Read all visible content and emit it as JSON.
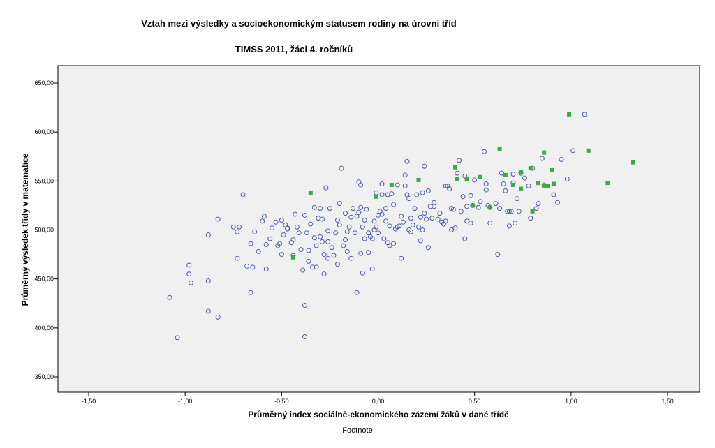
{
  "chart_data": {
    "type": "scatter",
    "title": "Vztah mezi výsledky a socioekonomickým statusem rodiny na úrovni tříd",
    "subtitle": "TIMSS 2011, žáci 4. ročníků",
    "xlabel": "Průměrný index sociálně-ekonomického zázemí žáků v dané třídě",
    "ylabel": "Průměrný výsledek třídy v matematice",
    "footnote": "Footnote",
    "xlim": [
      -1.5,
      1.5
    ],
    "ylim": [
      350,
      650
    ],
    "x_ticks": [
      -1.5,
      -1.0,
      -0.5,
      0.0,
      0.5,
      1.0,
      1.5
    ],
    "x_tick_labels": [
      "-1,50",
      "-1,00",
      "-0,50",
      "0,00",
      "0,50",
      "1,00",
      "1,50"
    ],
    "y_ticks": [
      350,
      400,
      450,
      500,
      550,
      600,
      650
    ],
    "y_tick_labels": [
      "350,00",
      "400,00",
      "450,00",
      "500,00",
      "550,00",
      "600,00",
      "650,00"
    ],
    "colors": {
      "plot_bg": "#f0f0f0",
      "circle": "#4a5aa8",
      "square": "#3aaa45"
    },
    "series": [
      {
        "name": "circles",
        "marker": "circle",
        "points": [
          [
            -1.08,
            431
          ],
          [
            -1.04,
            390
          ],
          [
            -0.97,
            446
          ],
          [
            -0.98,
            464
          ],
          [
            -0.98,
            455
          ],
          [
            -0.88,
            495
          ],
          [
            -0.88,
            448
          ],
          [
            -0.88,
            417
          ],
          [
            -0.83,
            411
          ],
          [
            -0.83,
            511
          ],
          [
            -0.75,
            503
          ],
          [
            -0.73,
            471
          ],
          [
            -0.73,
            498
          ],
          [
            -0.72,
            503
          ],
          [
            -0.7,
            536
          ],
          [
            -0.68,
            463
          ],
          [
            -0.66,
            486
          ],
          [
            -0.66,
            436
          ],
          [
            -0.65,
            462
          ],
          [
            -0.64,
            498
          ],
          [
            -0.62,
            478
          ],
          [
            -0.6,
            509
          ],
          [
            -0.59,
            514
          ],
          [
            -0.58,
            485
          ],
          [
            -0.58,
            460
          ],
          [
            -0.56,
            491
          ],
          [
            -0.55,
            502
          ],
          [
            -0.53,
            508
          ],
          [
            -0.52,
            484
          ],
          [
            -0.51,
            486
          ],
          [
            -0.5,
            475
          ],
          [
            -0.5,
            510
          ],
          [
            -0.49,
            495
          ],
          [
            -0.48,
            505
          ],
          [
            -0.47,
            502
          ],
          [
            -0.47,
            501
          ],
          [
            -0.45,
            487
          ],
          [
            -0.44,
            474
          ],
          [
            -0.44,
            490
          ],
          [
            -0.43,
            516
          ],
          [
            -0.42,
            503
          ],
          [
            -0.41,
            497
          ],
          [
            -0.4,
            480
          ],
          [
            -0.39,
            459
          ],
          [
            -0.38,
            423
          ],
          [
            -0.38,
            391
          ],
          [
            -0.38,
            515
          ],
          [
            -0.37,
            497
          ],
          [
            -0.36,
            479
          ],
          [
            -0.36,
            468
          ],
          [
            -0.35,
            506
          ],
          [
            -0.34,
            462
          ],
          [
            -0.33,
            523
          ],
          [
            -0.33,
            492
          ],
          [
            -0.32,
            484
          ],
          [
            -0.32,
            462
          ],
          [
            -0.31,
            512
          ],
          [
            -0.3,
            522
          ],
          [
            -0.3,
            493
          ],
          [
            -0.29,
            511
          ],
          [
            -0.29,
            488
          ],
          [
            -0.28,
            475
          ],
          [
            -0.28,
            455
          ],
          [
            -0.27,
            543
          ],
          [
            -0.26,
            499
          ],
          [
            -0.26,
            488
          ],
          [
            -0.26,
            471
          ],
          [
            -0.25,
            522
          ],
          [
            -0.24,
            482
          ],
          [
            -0.23,
            474
          ],
          [
            -0.22,
            497
          ],
          [
            -0.21,
            510
          ],
          [
            -0.21,
            465
          ],
          [
            -0.2,
            527
          ],
          [
            -0.2,
            505
          ],
          [
            -0.19,
            563
          ],
          [
            -0.18,
            484
          ],
          [
            -0.17,
            517
          ],
          [
            -0.17,
            490
          ],
          [
            -0.16,
            498
          ],
          [
            -0.16,
            478
          ],
          [
            -0.15,
            503
          ],
          [
            -0.14,
            471
          ],
          [
            -0.14,
            513
          ],
          [
            -0.13,
            522
          ],
          [
            -0.12,
            497
          ],
          [
            -0.11,
            514
          ],
          [
            -0.11,
            436
          ],
          [
            -0.1,
            549
          ],
          [
            -0.1,
            518
          ],
          [
            -0.09,
            546
          ],
          [
            -0.09,
            523
          ],
          [
            -0.09,
            476
          ],
          [
            -0.08,
            503
          ],
          [
            -0.08,
            456
          ],
          [
            -0.07,
            491
          ],
          [
            -0.07,
            510
          ],
          [
            -0.06,
            521
          ],
          [
            -0.05,
            497
          ],
          [
            -0.05,
            477
          ],
          [
            -0.04,
            493
          ],
          [
            -0.03,
            491
          ],
          [
            -0.03,
            460
          ],
          [
            -0.02,
            500
          ],
          [
            -0.02,
            509
          ],
          [
            -0.01,
            503
          ],
          [
            -0.01,
            538
          ],
          [
            0.0,
            497
          ],
          [
            0.0,
            515
          ],
          [
            0.01,
            519
          ],
          [
            0.02,
            536
          ],
          [
            0.02,
            516
          ],
          [
            0.02,
            547
          ],
          [
            0.03,
            491
          ],
          [
            0.04,
            522
          ],
          [
            0.04,
            509
          ],
          [
            0.05,
            487
          ],
          [
            0.05,
            536
          ],
          [
            0.06,
            504
          ],
          [
            0.06,
            484
          ],
          [
            0.07,
            537
          ],
          [
            0.08,
            486
          ],
          [
            0.08,
            526
          ],
          [
            0.09,
            501
          ],
          [
            0.1,
            546
          ],
          [
            0.1,
            503
          ],
          [
            0.11,
            504
          ],
          [
            0.12,
            514
          ],
          [
            0.12,
            471
          ],
          [
            0.13,
            508
          ],
          [
            0.14,
            545
          ],
          [
            0.14,
            556
          ],
          [
            0.15,
            536
          ],
          [
            0.15,
            570
          ],
          [
            0.16,
            532
          ],
          [
            0.16,
            500
          ],
          [
            0.17,
            512
          ],
          [
            0.17,
            498
          ],
          [
            0.18,
            505
          ],
          [
            0.19,
            522
          ],
          [
            0.2,
            536
          ],
          [
            0.21,
            503
          ],
          [
            0.22,
            513
          ],
          [
            0.22,
            489
          ],
          [
            0.23,
            538
          ],
          [
            0.23,
            500
          ],
          [
            0.24,
            517
          ],
          [
            0.24,
            565
          ],
          [
            0.25,
            511
          ],
          [
            0.26,
            540
          ],
          [
            0.26,
            482
          ],
          [
            0.27,
            524
          ],
          [
            0.28,
            512
          ],
          [
            0.29,
            528
          ],
          [
            0.29,
            524
          ],
          [
            0.31,
            511
          ],
          [
            0.32,
            517
          ],
          [
            0.33,
            508
          ],
          [
            0.34,
            506
          ],
          [
            0.35,
            509
          ],
          [
            0.35,
            545
          ],
          [
            0.36,
            545
          ],
          [
            0.37,
            542
          ],
          [
            0.38,
            522
          ],
          [
            0.38,
            500
          ],
          [
            0.39,
            521
          ],
          [
            0.4,
            502
          ],
          [
            0.41,
            558
          ],
          [
            0.42,
            571
          ],
          [
            0.43,
            519
          ],
          [
            0.44,
            534
          ],
          [
            0.45,
            491
          ],
          [
            0.45,
            555
          ],
          [
            0.46,
            509
          ],
          [
            0.46,
            524
          ],
          [
            0.48,
            535
          ],
          [
            0.48,
            507
          ],
          [
            0.49,
            525
          ],
          [
            0.5,
            551
          ],
          [
            0.52,
            523
          ],
          [
            0.53,
            529
          ],
          [
            0.55,
            580
          ],
          [
            0.56,
            547
          ],
          [
            0.56,
            541
          ],
          [
            0.57,
            525
          ],
          [
            0.58,
            507
          ],
          [
            0.58,
            523
          ],
          [
            0.61,
            527
          ],
          [
            0.62,
            475
          ],
          [
            0.64,
            558
          ],
          [
            0.65,
            547
          ],
          [
            0.66,
            540
          ],
          [
            0.67,
            519
          ],
          [
            0.68,
            504
          ],
          [
            0.7,
            557
          ],
          [
            0.7,
            548
          ],
          [
            0.71,
            507
          ],
          [
            0.72,
            532
          ],
          [
            0.73,
            519
          ],
          [
            0.74,
            558
          ],
          [
            0.78,
            545
          ],
          [
            0.8,
            563
          ],
          [
            0.82,
            522
          ],
          [
            0.85,
            573
          ],
          [
            0.86,
            546
          ],
          [
            0.88,
            545
          ],
          [
            0.91,
            536
          ],
          [
            0.93,
            528
          ],
          [
            0.95,
            572
          ],
          [
            0.98,
            552
          ],
          [
            1.01,
            581
          ],
          [
            1.07,
            618
          ],
          [
            0.79,
            512
          ],
          [
            0.63,
            522
          ],
          [
            0.68,
            519
          ],
          [
            0.69,
            519
          ],
          [
            0.76,
            553
          ],
          [
            0.83,
            527
          ]
        ]
      },
      {
        "name": "squares",
        "marker": "square",
        "points": [
          [
            -0.35,
            538
          ],
          [
            -0.44,
            472
          ],
          [
            -0.01,
            534
          ],
          [
            0.07,
            546
          ],
          [
            0.21,
            551
          ],
          [
            0.4,
            564
          ],
          [
            0.41,
            552
          ],
          [
            0.46,
            552
          ],
          [
            0.49,
            525
          ],
          [
            0.53,
            554
          ],
          [
            0.58,
            523
          ],
          [
            0.63,
            583
          ],
          [
            0.66,
            556
          ],
          [
            0.7,
            546
          ],
          [
            0.74,
            559
          ],
          [
            0.74,
            542
          ],
          [
            0.79,
            563
          ],
          [
            0.8,
            519
          ],
          [
            0.83,
            548
          ],
          [
            0.86,
            579
          ],
          [
            0.86,
            545
          ],
          [
            0.88,
            545
          ],
          [
            0.9,
            561
          ],
          [
            0.91,
            547
          ],
          [
            0.99,
            618
          ],
          [
            1.09,
            581
          ],
          [
            1.19,
            548
          ],
          [
            1.32,
            569
          ]
        ]
      }
    ]
  }
}
